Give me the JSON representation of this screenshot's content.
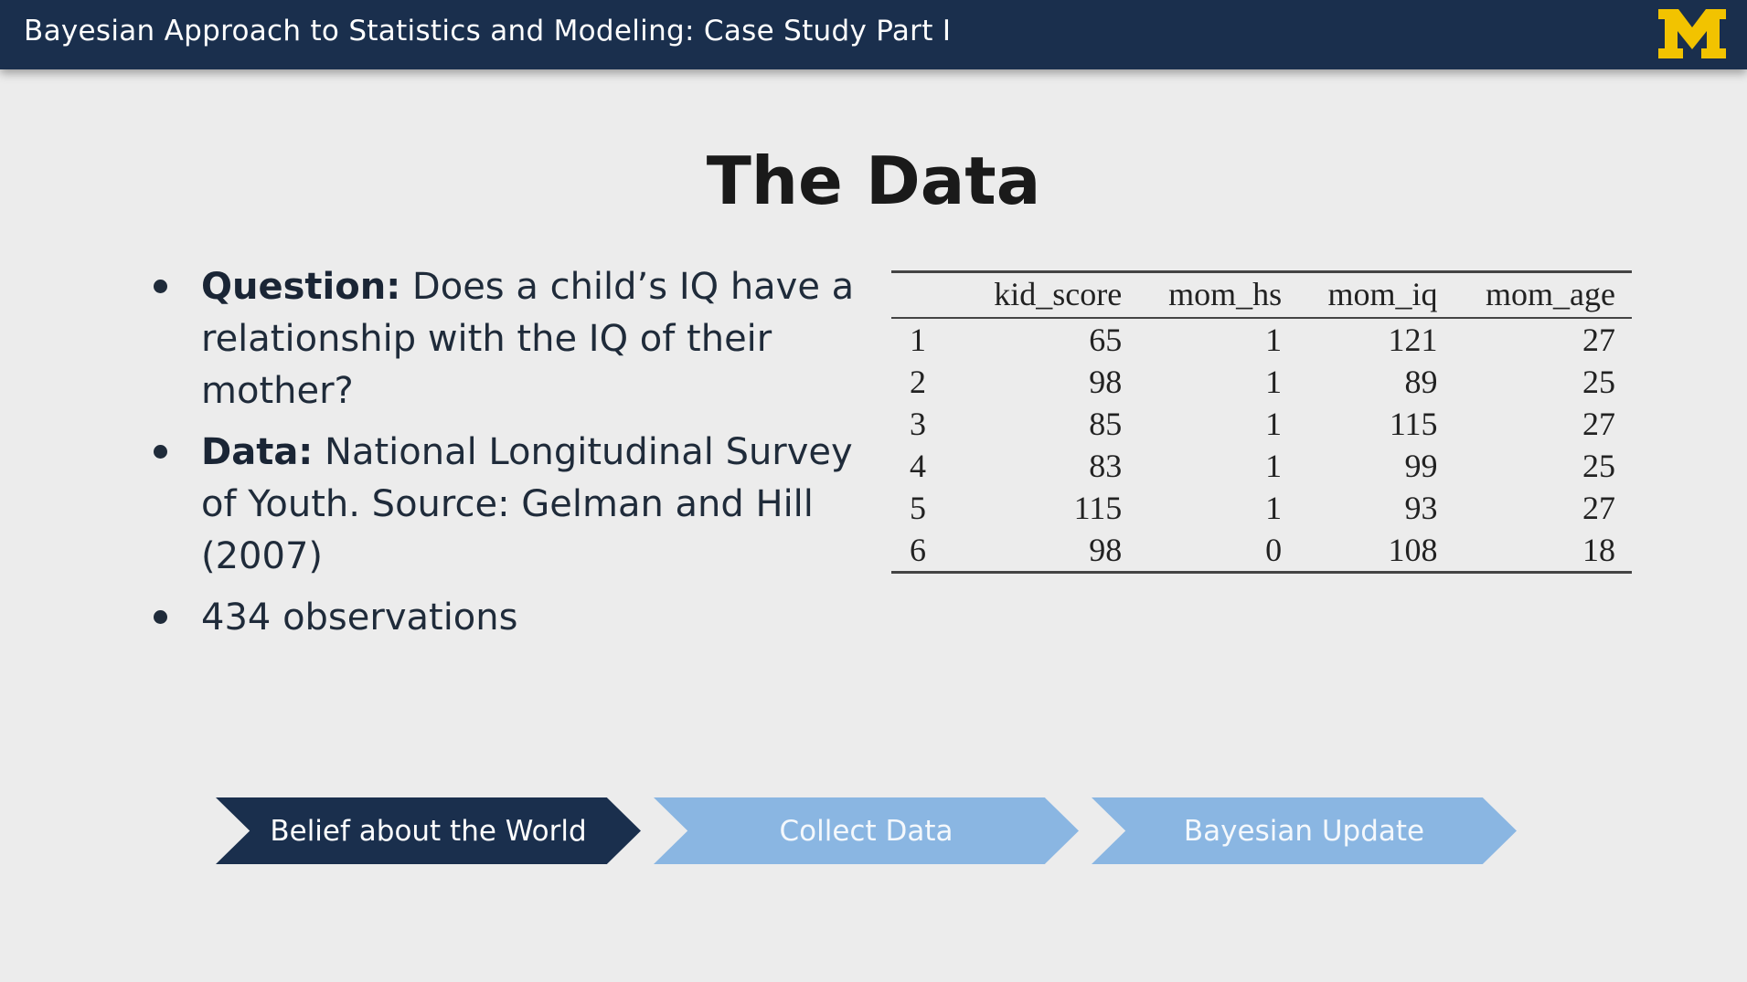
{
  "header": {
    "title": "Bayesian Approach to Statistics and Modeling: Case Study Part I",
    "logo_icon": "university-of-michigan-block-m",
    "background_color": "#1a2f4d",
    "logo_color": "#f2c300"
  },
  "slide": {
    "title": "The Data"
  },
  "bullets": [
    {
      "label": "Question:",
      "text": "Does a child’s IQ have a relationship with the IQ of their mother?"
    },
    {
      "label": "Data:",
      "text": "National Longitudinal Survey of Youth. Source: Gelman and Hill (2007)"
    },
    {
      "label": "",
      "text": "434 observations"
    }
  ],
  "table": {
    "columns": [
      "",
      "kid_score",
      "mom_hs",
      "mom_iq",
      "mom_age"
    ],
    "rows": [
      [
        "1",
        "65",
        "1",
        "121",
        "27"
      ],
      [
        "2",
        "98",
        "1",
        "89",
        "25"
      ],
      [
        "3",
        "85",
        "1",
        "115",
        "27"
      ],
      [
        "4",
        "83",
        "1",
        "99",
        "25"
      ],
      [
        "5",
        "115",
        "1",
        "93",
        "27"
      ],
      [
        "6",
        "98",
        "0",
        "108",
        "18"
      ]
    ]
  },
  "process_steps": [
    {
      "label": "Belief about the World",
      "active": true,
      "color": "#1a2f4d"
    },
    {
      "label": "Collect Data",
      "active": false,
      "color": "#8ab6e2"
    },
    {
      "label": "Bayesian Update",
      "active": false,
      "color": "#8ab6e2"
    }
  ]
}
